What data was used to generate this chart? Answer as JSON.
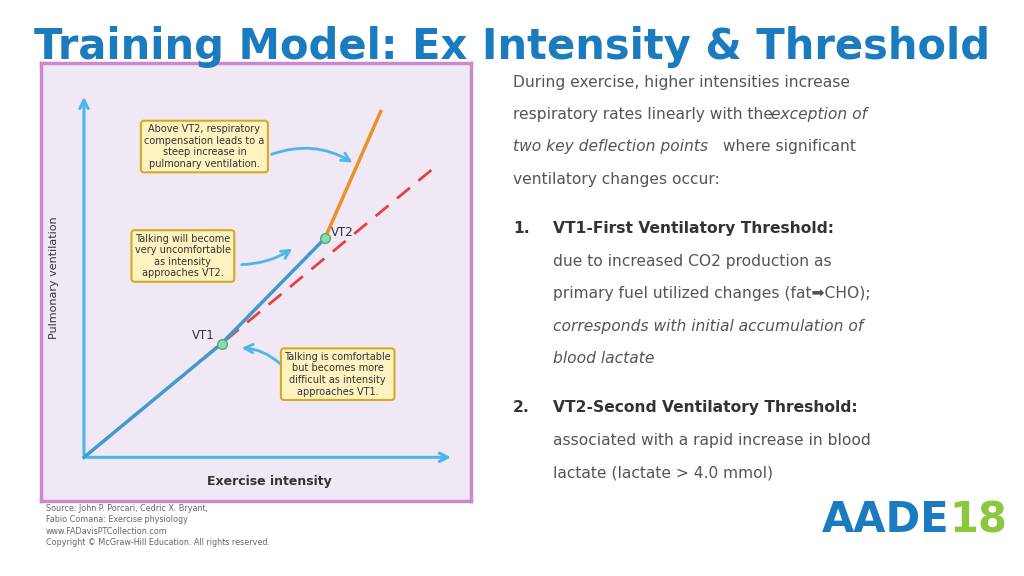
{
  "title": "Training Model: Ex Intensity & Threshold",
  "title_color": "#1a7bbf",
  "title_fontsize": 30,
  "bg_color": "#ffffff",
  "panel_bg": "#f0e8f5",
  "panel_border": "#cc88cc",
  "ylabel": "Pulmonary ventilation",
  "xlabel": "Exercise intensity",
  "box1_text": "Above VT2, respiratory\ncompensation leads to a\nsteep increase in\npulmonary ventilation.",
  "box2_text": "Talking will become\nvery uncomfortable\nas intensity\napproaches VT2.",
  "box3_text": "Talking is comfortable\nbut becomes more\ndifficult as intensity\napproaches VT1.",
  "box_facecolor": "#fef3c0",
  "box_edgecolor": "#d4aa20",
  "arrow_color": "#4db8e8",
  "line_blue": "#4499cc",
  "line_orange": "#e8922a",
  "line_dashed": "#e84040",
  "dot_color": "#88ddaa",
  "dot_edge": "#55aa77",
  "source_text": "Source: John P. Porcari, Cedric X. Bryant,\nFabio Comana: Exercise physiology\nwww.FADavisPTCollection.com\nCopyright © McGraw-Hill Education. All rights reserved.",
  "aade_color_A": "#1a7bbf",
  "aade_color_18": "#8dc63f",
  "text_color": "#555555",
  "heading_color": "#333333"
}
